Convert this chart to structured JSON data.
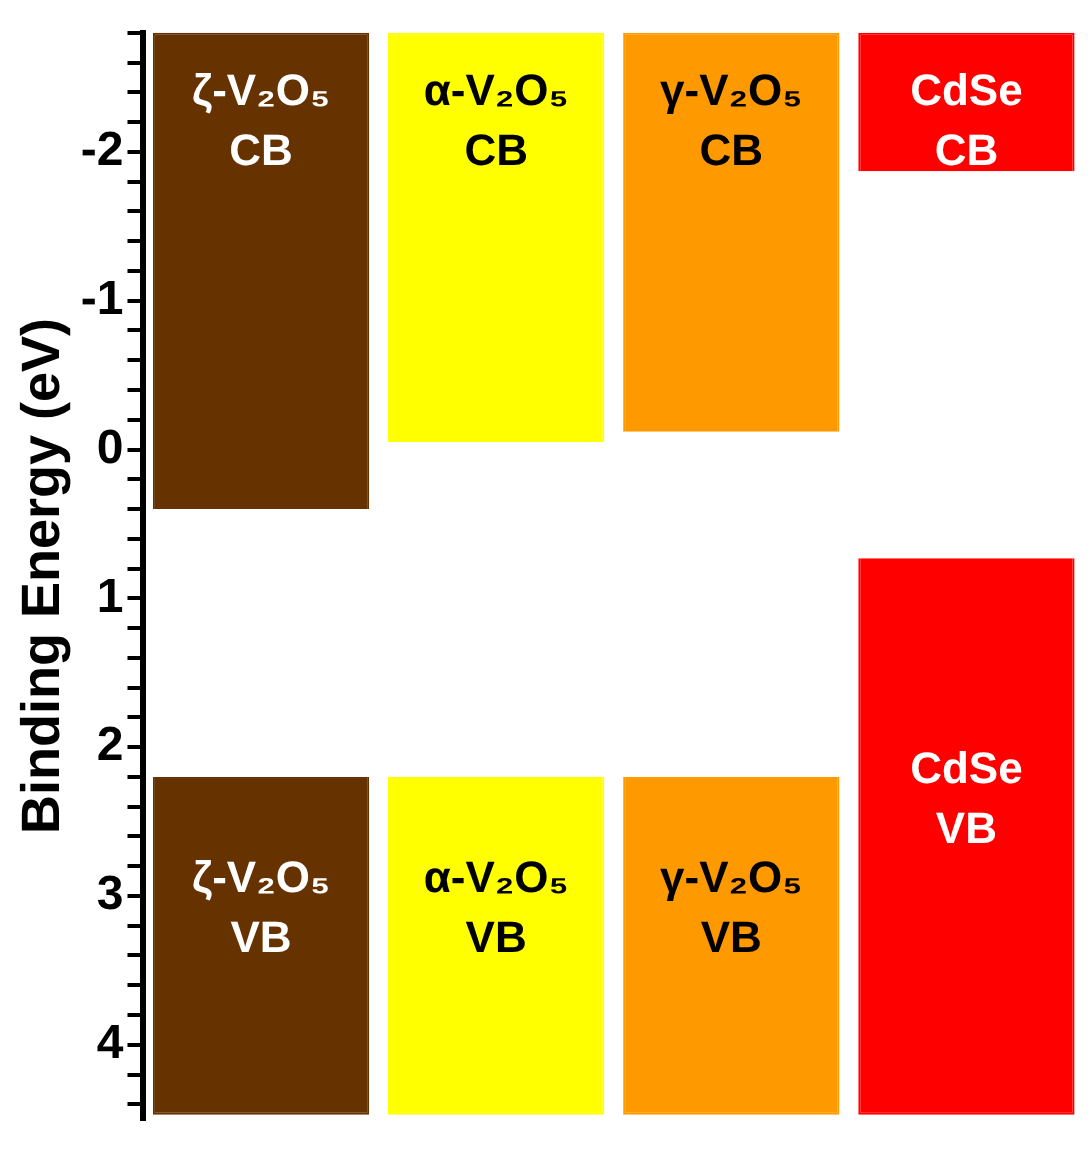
{
  "chart_data": {
    "type": "bar",
    "ylabel": "Binding Energy (eV)",
    "categories": [
      "ζ-V₂O₅",
      "α-V₂O₅",
      "γ-V₂O₅",
      "CdSe"
    ],
    "series": [
      {
        "name": "CB",
        "colors": [
          "#663300",
          "#ffff00",
          "#ff9900",
          "#ff0000"
        ],
        "base": [
          -2.8,
          -2.8,
          -2.8,
          -2.8
        ],
        "values": [
          3.2,
          2.75,
          2.68,
          0.93
        ]
      },
      {
        "name": "VB",
        "colors": [
          "#663300",
          "#ffff00",
          "#ff9900",
          "#ff0000"
        ],
        "base": [
          2.2,
          2.2,
          2.2,
          0.73
        ],
        "values": [
          2.27,
          2.27,
          2.27,
          3.74
        ]
      }
    ],
    "ylim": [
      4.5,
      -2.8
    ],
    "yticks": [
      {
        "value": -2.8,
        "label": null
      },
      {
        "value": -2.6,
        "label": null
      },
      {
        "value": -2.4,
        "label": null
      },
      {
        "value": -2.2,
        "label": null
      },
      -2,
      {
        "value": -1.8,
        "label": null
      },
      {
        "value": -1.6,
        "label": null
      },
      {
        "value": -1.4,
        "label": null
      },
      {
        "value": -1.2,
        "label": null
      },
      -1,
      {
        "value": -0.8,
        "label": null
      },
      {
        "value": -0.6,
        "label": null
      },
      {
        "value": -0.4,
        "label": null
      },
      {
        "value": -0.2,
        "label": null
      },
      0,
      {
        "value": 0.2,
        "label": null
      },
      {
        "value": 0.4,
        "label": null
      },
      {
        "value": 0.6,
        "label": null
      },
      {
        "value": 0.8,
        "label": null
      },
      1,
      {
        "value": 1.2,
        "label": null
      },
      {
        "value": 1.4,
        "label": null
      },
      {
        "value": 1.6,
        "label": null
      },
      {
        "value": 1.8,
        "label": null
      },
      2,
      {
        "value": 2.2,
        "label": null
      },
      {
        "value": 2.4,
        "label": null
      },
      {
        "value": 2.6,
        "label": null
      },
      {
        "value": 2.8,
        "label": null
      },
      3,
      {
        "value": 3.2,
        "label": null
      },
      {
        "value": 3.4,
        "label": null
      },
      {
        "value": 3.6,
        "label": null
      },
      {
        "value": 3.8,
        "label": null
      },
      4,
      {
        "value": 4.2,
        "label": null
      },
      {
        "value": 4.4,
        "label": null
      }
    ],
    "grid": false,
    "legend": false,
    "tick_labels": "y"
  }
}
